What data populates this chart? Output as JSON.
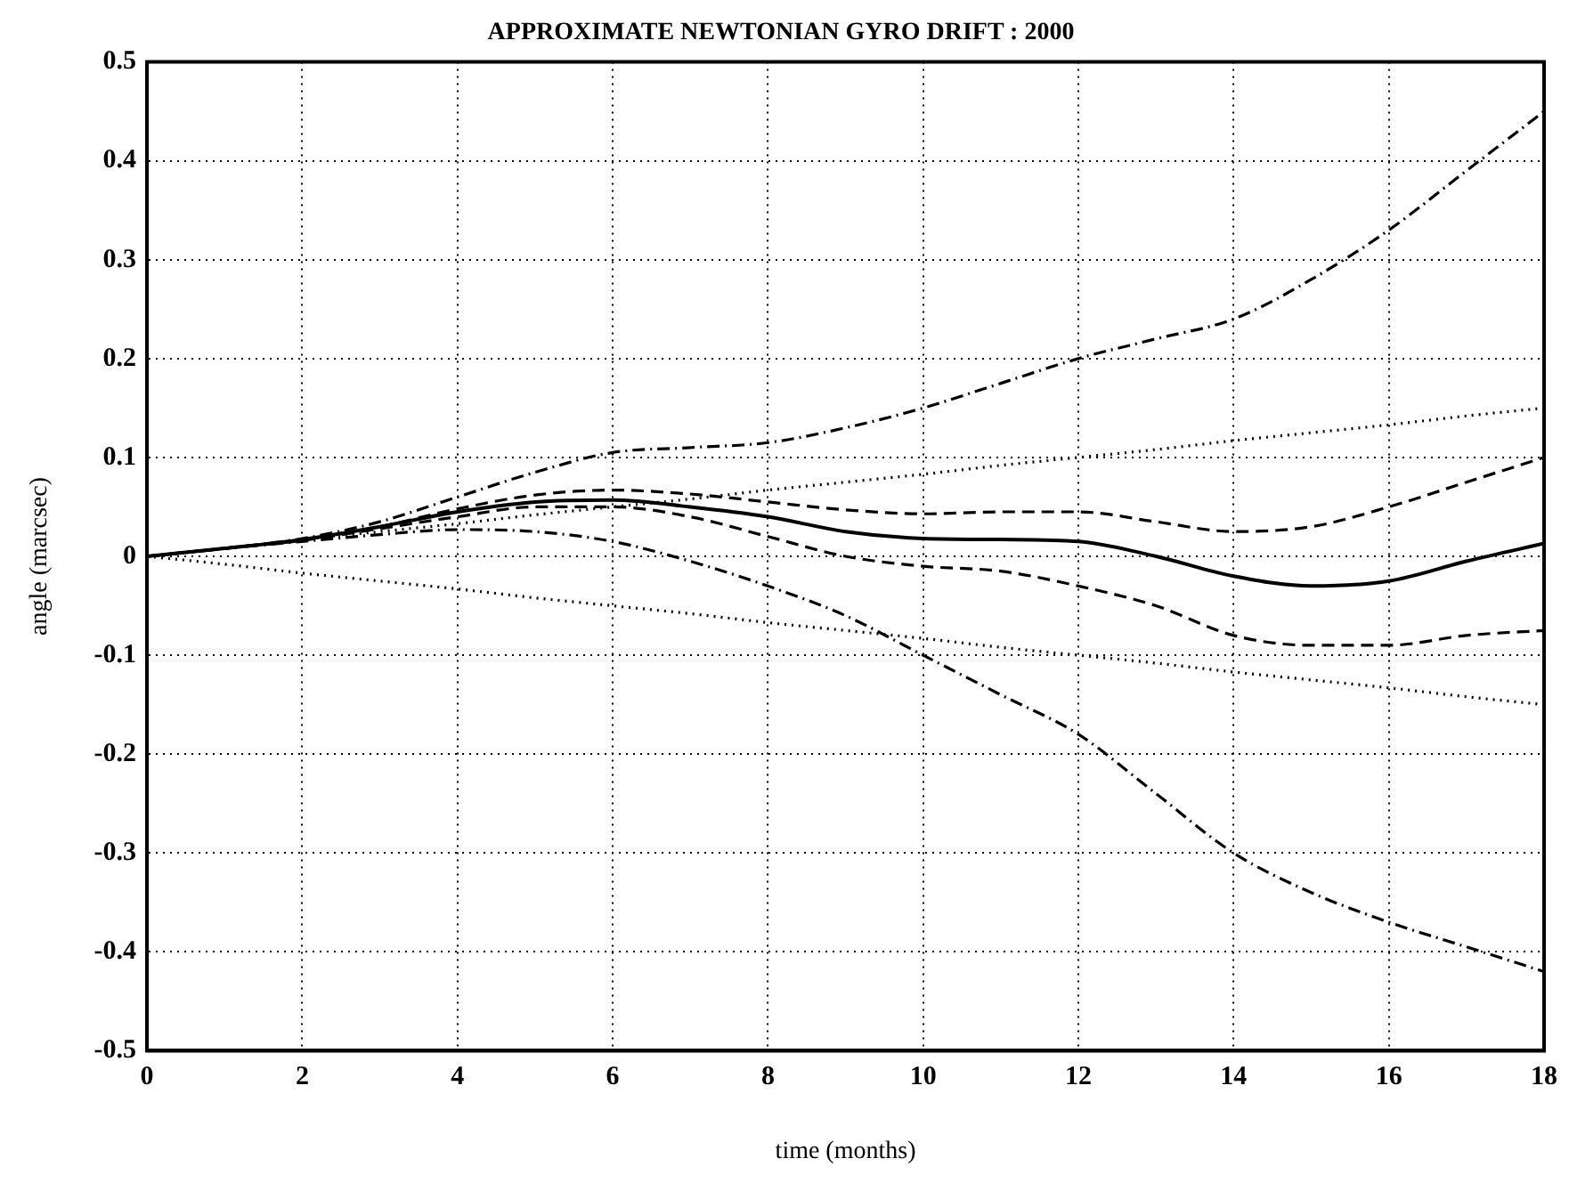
{
  "chart_data": {
    "type": "line",
    "title": "APPROXIMATE NEWTONIAN GYRO DRIFT : 2000",
    "xlabel": "time (months)",
    "ylabel": "angle (marcsec)",
    "x": [
      0,
      1,
      2,
      3,
      4,
      5,
      6,
      7,
      8,
      9,
      10,
      11,
      12,
      13,
      14,
      15,
      16,
      17,
      18
    ],
    "xlim": [
      0,
      18
    ],
    "xticks": [
      0,
      2,
      4,
      6,
      8,
      10,
      12,
      14,
      16,
      18
    ],
    "ylim": [
      -0.5,
      0.5
    ],
    "yticks": [
      -0.5,
      -0.4,
      -0.3,
      -0.2,
      -0.1,
      0,
      0.1,
      0.2,
      0.3,
      0.4,
      0.5
    ],
    "grid": true,
    "marker": "none",
    "series": [
      {
        "color": "#000000",
        "line_style": "dashdot",
        "values": [
          0,
          0.008,
          0.018,
          0.035,
          0.06,
          0.085,
          0.105,
          0.11,
          0.115,
          0.13,
          0.15,
          0.175,
          0.2,
          0.22,
          0.24,
          0.28,
          0.33,
          0.39,
          0.45
        ]
      },
      {
        "color": "#000000",
        "line_style": "dotted",
        "values": [
          0,
          0.008,
          0.017,
          0.025,
          0.033,
          0.042,
          0.05,
          0.058,
          0.067,
          0.075,
          0.083,
          0.092,
          0.1,
          0.108,
          0.117,
          0.125,
          0.133,
          0.142,
          0.15
        ]
      },
      {
        "color": "#000000",
        "line_style": "dashed",
        "values": [
          0,
          0.008,
          0.017,
          0.03,
          0.048,
          0.062,
          0.067,
          0.063,
          0.055,
          0.047,
          0.043,
          0.045,
          0.045,
          0.035,
          0.025,
          0.03,
          0.05,
          0.075,
          0.1
        ]
      },
      {
        "color": "#000000",
        "line_style": "solid",
        "values": [
          0,
          0.008,
          0.017,
          0.03,
          0.045,
          0.055,
          0.057,
          0.05,
          0.04,
          0.025,
          0.018,
          0.017,
          0.015,
          0,
          -0.02,
          -0.03,
          -0.025,
          -0.005,
          0.013
        ]
      },
      {
        "color": "#000000",
        "line_style": "dashed",
        "values": [
          0,
          0.008,
          0.016,
          0.028,
          0.04,
          0.05,
          0.05,
          0.04,
          0.02,
          0,
          -0.01,
          -0.015,
          -0.03,
          -0.05,
          -0.08,
          -0.09,
          -0.09,
          -0.08,
          -0.075
        ]
      },
      {
        "color": "#000000",
        "line_style": "dotted",
        "values": [
          0,
          -0.008,
          -0.017,
          -0.025,
          -0.033,
          -0.042,
          -0.05,
          -0.058,
          -0.067,
          -0.075,
          -0.083,
          -0.092,
          -0.1,
          -0.108,
          -0.117,
          -0.125,
          -0.133,
          -0.142,
          -0.15
        ]
      },
      {
        "color": "#000000",
        "line_style": "dashdot",
        "values": [
          0,
          0.008,
          0.015,
          0.022,
          0.027,
          0.025,
          0.015,
          -0.005,
          -0.03,
          -0.06,
          -0.1,
          -0.14,
          -0.18,
          -0.24,
          -0.3,
          -0.34,
          -0.37,
          -0.395,
          -0.42
        ]
      }
    ]
  }
}
